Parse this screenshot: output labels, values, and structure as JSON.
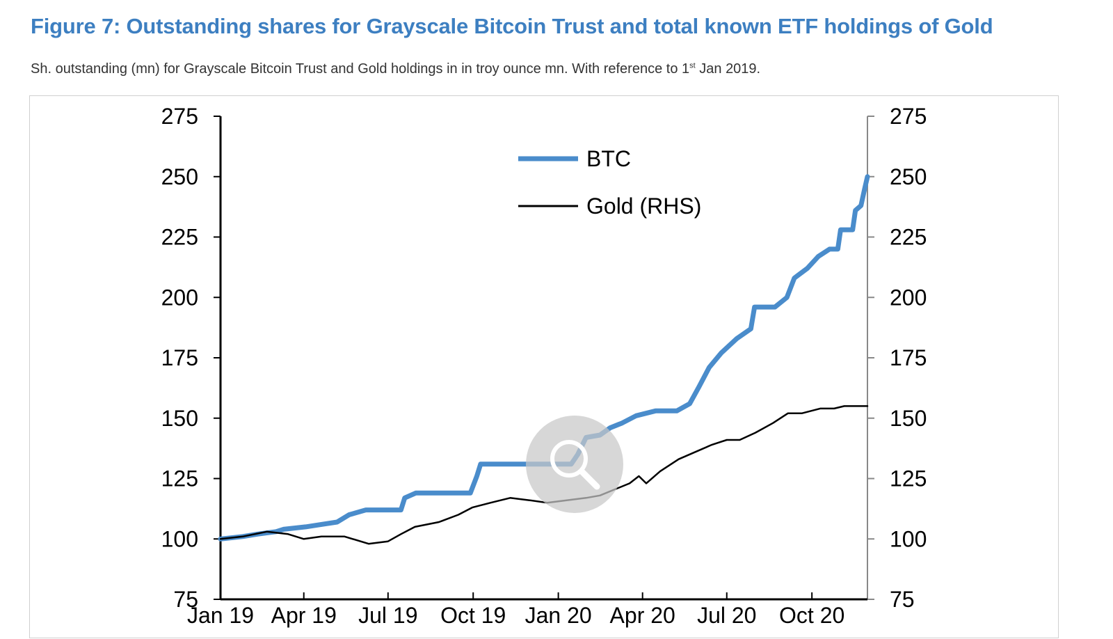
{
  "header": {
    "title": "Figure 7: Outstanding shares for Grayscale Bitcoin Trust and total known ETF holdings of Gold",
    "subtitle_pre": "Sh. outstanding (mn) for Grayscale Bitcoin Trust and Gold holdings in in troy ounce mn. With reference to 1",
    "subtitle_sup": "st",
    "subtitle_post": " Jan 2019."
  },
  "icons": {
    "zoom": "magnifier-icon"
  },
  "colors": {
    "title": "#3d7fc1",
    "btc": "#4a8ccb",
    "gold": "#000000",
    "zoom_bg": "#c8c8c8"
  },
  "chart_data": {
    "type": "line",
    "ylim": [
      75,
      275
    ],
    "y_ticks": [
      75,
      100,
      125,
      150,
      175,
      200,
      225,
      250,
      275
    ],
    "y2lim": [
      75,
      275
    ],
    "y2_ticks": [
      75,
      100,
      125,
      150,
      175,
      200,
      225,
      250,
      275
    ],
    "x_domain": [
      "2019-01-01",
      "2020-11-30"
    ],
    "x_ticks": [
      {
        "label": "Jan 19",
        "date": "2019-01-01"
      },
      {
        "label": "Apr 19",
        "date": "2019-04-01"
      },
      {
        "label": "Jul 19",
        "date": "2019-07-01"
      },
      {
        "label": "Oct 19",
        "date": "2019-10-01"
      },
      {
        "label": "Jan 20",
        "date": "2020-01-01"
      },
      {
        "label": "Apr 20",
        "date": "2020-04-01"
      },
      {
        "label": "Jul 20",
        "date": "2020-07-01"
      },
      {
        "label": "Oct 20",
        "date": "2020-10-01"
      }
    ],
    "legend_position": "top-center",
    "grid": false,
    "series": [
      {
        "name": "BTC",
        "axis": "left",
        "color": "#4a8ccb",
        "points": [
          [
            "2019-01-01",
            100
          ],
          [
            "2019-01-25",
            101
          ],
          [
            "2019-02-10",
            102
          ],
          [
            "2019-03-02",
            103
          ],
          [
            "2019-03-10",
            104
          ],
          [
            "2019-04-03",
            105
          ],
          [
            "2019-04-20",
            106
          ],
          [
            "2019-05-07",
            107
          ],
          [
            "2019-05-20",
            110
          ],
          [
            "2019-06-07",
            112
          ],
          [
            "2019-07-15",
            112
          ],
          [
            "2019-07-19",
            117
          ],
          [
            "2019-07-31",
            119
          ],
          [
            "2019-09-20",
            119
          ],
          [
            "2019-09-28",
            119
          ],
          [
            "2019-10-05",
            126
          ],
          [
            "2019-10-09",
            131
          ],
          [
            "2020-01-15",
            131
          ],
          [
            "2020-01-22",
            135
          ],
          [
            "2020-01-31",
            142
          ],
          [
            "2020-02-15",
            143
          ],
          [
            "2020-02-26",
            146
          ],
          [
            "2020-03-10",
            148
          ],
          [
            "2020-03-25",
            151
          ],
          [
            "2020-04-15",
            153
          ],
          [
            "2020-05-08",
            153
          ],
          [
            "2020-05-22",
            156
          ],
          [
            "2020-06-01",
            163
          ],
          [
            "2020-06-12",
            171
          ],
          [
            "2020-06-25",
            177
          ],
          [
            "2020-07-12",
            183
          ],
          [
            "2020-07-27",
            187
          ],
          [
            "2020-07-31",
            196
          ],
          [
            "2020-08-22",
            196
          ],
          [
            "2020-09-04",
            200
          ],
          [
            "2020-09-12",
            208
          ],
          [
            "2020-09-26",
            212
          ],
          [
            "2020-10-08",
            217
          ],
          [
            "2020-10-20",
            220
          ],
          [
            "2020-10-29",
            220
          ],
          [
            "2020-11-01",
            228
          ],
          [
            "2020-11-14",
            228
          ],
          [
            "2020-11-17",
            236
          ],
          [
            "2020-11-23",
            238
          ],
          [
            "2020-11-27",
            245
          ],
          [
            "2020-11-30",
            250
          ]
        ]
      },
      {
        "name": "Gold (RHS)",
        "axis": "right",
        "color": "#000000",
        "points": [
          [
            "2019-01-01",
            100
          ],
          [
            "2019-01-25",
            101
          ],
          [
            "2019-02-20",
            103
          ],
          [
            "2019-03-15",
            102
          ],
          [
            "2019-04-01",
            100
          ],
          [
            "2019-04-20",
            101
          ],
          [
            "2019-05-15",
            101
          ],
          [
            "2019-06-10",
            98
          ],
          [
            "2019-07-01",
            99
          ],
          [
            "2019-07-15",
            102
          ],
          [
            "2019-07-30",
            105
          ],
          [
            "2019-08-25",
            107
          ],
          [
            "2019-09-15",
            110
          ],
          [
            "2019-09-30",
            113
          ],
          [
            "2019-10-20",
            115
          ],
          [
            "2019-11-10",
            117
          ],
          [
            "2019-12-01",
            116
          ],
          [
            "2019-12-20",
            115
          ],
          [
            "2020-01-10",
            116
          ],
          [
            "2020-01-31",
            117
          ],
          [
            "2020-02-15",
            118
          ],
          [
            "2020-03-05",
            121
          ],
          [
            "2020-03-18",
            123
          ],
          [
            "2020-03-28",
            126
          ],
          [
            "2020-04-05",
            123
          ],
          [
            "2020-04-20",
            128
          ],
          [
            "2020-05-10",
            133
          ],
          [
            "2020-05-28",
            136
          ],
          [
            "2020-06-15",
            139
          ],
          [
            "2020-07-01",
            141
          ],
          [
            "2020-07-15",
            141
          ],
          [
            "2020-08-01",
            144
          ],
          [
            "2020-08-20",
            148
          ],
          [
            "2020-09-05",
            152
          ],
          [
            "2020-09-20",
            152
          ],
          [
            "2020-10-10",
            154
          ],
          [
            "2020-10-25",
            154
          ],
          [
            "2020-11-05",
            155
          ],
          [
            "2020-11-20",
            155
          ],
          [
            "2020-11-30",
            155
          ]
        ]
      }
    ]
  }
}
